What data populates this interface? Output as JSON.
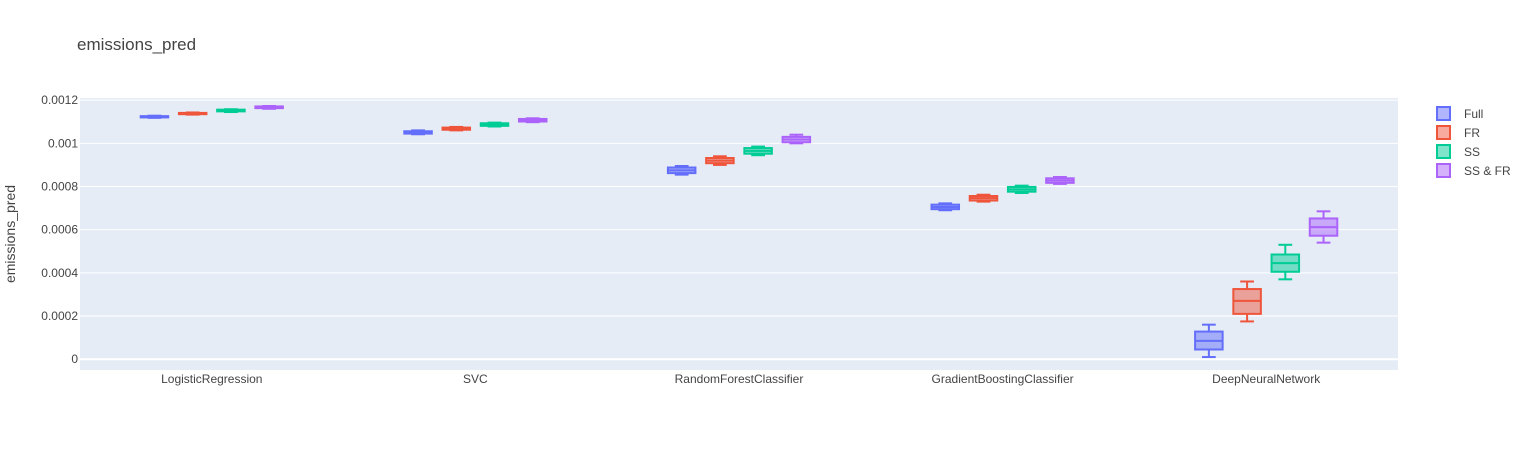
{
  "chart_data": {
    "type": "box",
    "title": "emissions_pred",
    "ylabel": "emissions_pred",
    "xlabel": "",
    "ylim": [
      -5e-05,
      0.00121
    ],
    "yticks": [
      {
        "value": 0,
        "label": "0"
      },
      {
        "value": 0.0002,
        "label": "0.0002"
      },
      {
        "value": 0.0004,
        "label": "0.0004"
      },
      {
        "value": 0.0006,
        "label": "0.0006"
      },
      {
        "value": 0.0008,
        "label": "0.0008"
      },
      {
        "value": 0.001,
        "label": "0.001"
      },
      {
        "value": 0.0012,
        "label": "0.0012"
      }
    ],
    "categories": [
      "LogisticRegression",
      "SVC",
      "RandomForestClassifier",
      "GradientBoostingClassifier",
      "DeepNeuralNetwork"
    ],
    "legend_position": "top-right",
    "grid": true,
    "background_color": "#E5ECF6",
    "series": [
      {
        "name": "Full",
        "color": "#636EFA",
        "boxes": [
          {
            "min": 0.001118,
            "q1": 0.00112,
            "median": 0.001123,
            "q3": 0.001126,
            "max": 0.001128
          },
          {
            "min": 0.001042,
            "q1": 0.001045,
            "median": 0.00105,
            "q3": 0.001056,
            "max": 0.00106
          },
          {
            "min": 0.000855,
            "q1": 0.000862,
            "median": 0.000875,
            "q3": 0.000888,
            "max": 0.000895
          },
          {
            "min": 0.00069,
            "q1": 0.000695,
            "median": 0.000705,
            "q3": 0.000716,
            "max": 0.000722
          },
          {
            "min": 1e-05,
            "q1": 4.5e-05,
            "median": 8.5e-05,
            "q3": 0.000128,
            "max": 0.00016
          }
        ]
      },
      {
        "name": "FR",
        "color": "#EF553B",
        "boxes": [
          {
            "min": 0.001133,
            "q1": 0.001135,
            "median": 0.001138,
            "q3": 0.001141,
            "max": 0.001143
          },
          {
            "min": 0.00106,
            "q1": 0.001063,
            "median": 0.001068,
            "q3": 0.001073,
            "max": 0.001076
          },
          {
            "min": 0.0009,
            "q1": 0.000908,
            "median": 0.00092,
            "q3": 0.000932,
            "max": 0.00094
          },
          {
            "min": 0.00073,
            "q1": 0.000735,
            "median": 0.000746,
            "q3": 0.000756,
            "max": 0.000762
          },
          {
            "min": 0.000175,
            "q1": 0.00021,
            "median": 0.00027,
            "q3": 0.000325,
            "max": 0.00036
          }
        ]
      },
      {
        "name": "SS",
        "color": "#00CC96",
        "boxes": [
          {
            "min": 0.001145,
            "q1": 0.001148,
            "median": 0.001152,
            "q3": 0.001156,
            "max": 0.001158
          },
          {
            "min": 0.001078,
            "q1": 0.001081,
            "median": 0.001087,
            "q3": 0.001093,
            "max": 0.001096
          },
          {
            "min": 0.000945,
            "q1": 0.000952,
            "median": 0.000965,
            "q3": 0.000978,
            "max": 0.000985
          },
          {
            "min": 0.00077,
            "q1": 0.000776,
            "median": 0.000787,
            "q3": 0.000798,
            "max": 0.000804
          },
          {
            "min": 0.00037,
            "q1": 0.000405,
            "median": 0.000445,
            "q3": 0.000485,
            "max": 0.00053
          }
        ]
      },
      {
        "name": "SS & FR",
        "color": "#AB63FA",
        "boxes": [
          {
            "min": 0.00116,
            "q1": 0.001163,
            "median": 0.001167,
            "q3": 0.001171,
            "max": 0.001173
          },
          {
            "min": 0.001098,
            "q1": 0.001101,
            "median": 0.001107,
            "q3": 0.001113,
            "max": 0.001116
          },
          {
            "min": 0.001,
            "q1": 0.001005,
            "median": 0.001018,
            "q3": 0.00103,
            "max": 0.00104
          },
          {
            "min": 0.000812,
            "q1": 0.000817,
            "median": 0.000828,
            "q3": 0.000838,
            "max": 0.000844
          },
          {
            "min": 0.00054,
            "q1": 0.000572,
            "median": 0.000612,
            "q3": 0.000652,
            "max": 0.000685
          }
        ]
      }
    ]
  }
}
